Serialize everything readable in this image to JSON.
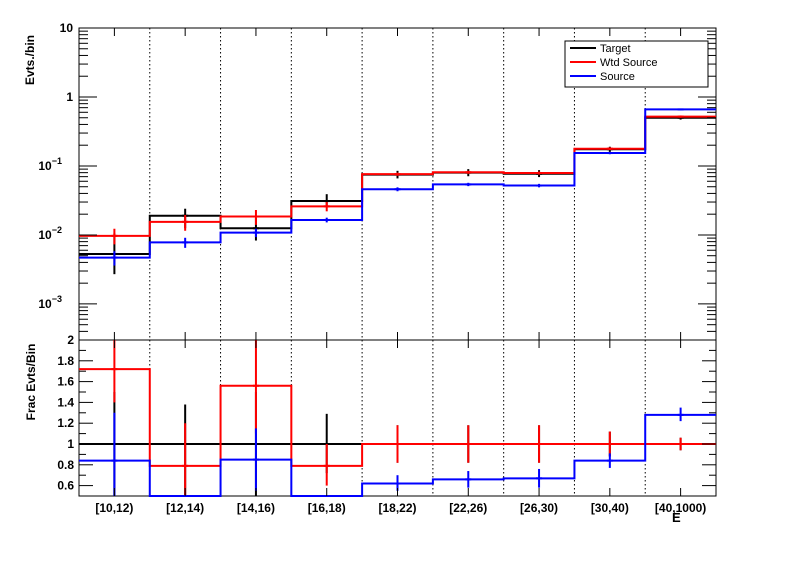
{
  "chart_data": [
    {
      "type": "line",
      "step": true,
      "title": "",
      "ylabel": "Evts./bin",
      "xlabel": "",
      "yscale": "log",
      "ylim": [
        0.0003,
        10
      ],
      "y_ticks": [
        {
          "label": "10",
          "value": 10,
          "exp": ""
        },
        {
          "label": "1",
          "value": 1,
          "exp": ""
        },
        {
          "label": "10",
          "value": 0.1,
          "exp": "−1"
        },
        {
          "label": "10",
          "value": 0.01,
          "exp": "−2"
        },
        {
          "label": "10",
          "value": 0.001,
          "exp": "−3"
        }
      ],
      "categories": [
        "[10,12)",
        "[12,14)",
        "[14,16)",
        "[16,18)",
        "[18,22)",
        "[22,26)",
        "[26,30)",
        "[30,40)",
        "[40,1000)"
      ],
      "legend": {
        "position": "top-right"
      },
      "grid": {
        "x": "dotted",
        "y": false
      },
      "series": [
        {
          "name": "Target",
          "color": "#000000",
          "values": [
            0.0053,
            0.019,
            0.0125,
            0.031,
            0.075,
            0.08,
            0.077,
            0.175,
            0.5
          ],
          "errors_low": [
            0.0027,
            0.0125,
            0.0083,
            0.025,
            0.066,
            0.071,
            0.069,
            0.16,
            0.47
          ],
          "errors_high": [
            0.0105,
            0.024,
            0.0175,
            0.039,
            0.085,
            0.09,
            0.087,
            0.19,
            0.53
          ]
        },
        {
          "name": "Wtd Source",
          "color": "#ff0000",
          "values": [
            0.0097,
            0.0155,
            0.0185,
            0.026,
            0.076,
            0.081,
            0.079,
            0.178,
            0.52
          ],
          "errors_low": [
            0.0073,
            0.0115,
            0.014,
            0.022,
            0.072,
            0.077,
            0.075,
            0.17,
            0.5
          ],
          "errors_high": [
            0.0123,
            0.0195,
            0.023,
            0.03,
            0.08,
            0.085,
            0.083,
            0.186,
            0.54
          ]
        },
        {
          "name": "Source",
          "color": "#0000ff",
          "values": [
            0.0047,
            0.0078,
            0.0108,
            0.0165,
            0.046,
            0.054,
            0.052,
            0.154,
            0.66
          ],
          "errors_low": [
            0.0036,
            0.0065,
            0.0093,
            0.0152,
            0.043,
            0.051,
            0.049,
            0.148,
            0.64
          ],
          "errors_high": [
            0.0058,
            0.0091,
            0.0123,
            0.0178,
            0.049,
            0.057,
            0.055,
            0.16,
            0.68
          ]
        }
      ]
    },
    {
      "type": "line",
      "step": true,
      "title": "",
      "ylabel": "Frac Evts/Bin",
      "xlabel": "E",
      "yscale": "linear",
      "ylim": [
        0.5,
        2.0
      ],
      "y_ticks": [
        "0.6",
        "0.8",
        "1",
        "1.2",
        "1.4",
        "1.6",
        "1.8",
        "2"
      ],
      "categories": [
        "[10,12)",
        "[12,14)",
        "[14,16)",
        "[16,18)",
        "[18,22)",
        "[22,26)",
        "[26,30)",
        "[30,40)",
        "[40,1000)"
      ],
      "grid": {
        "x": "dotted",
        "y": false
      },
      "series": [
        {
          "name": "Target",
          "color": "#000000",
          "values": [
            1,
            1,
            1,
            1,
            1,
            1,
            1,
            1,
            1
          ],
          "errors_low": [
            0.5,
            0.5,
            0.5,
            0.72,
            0.82,
            0.82,
            0.82,
            0.88,
            0.94
          ],
          "errors_high": [
            1.5,
            1.38,
            1.5,
            1.29,
            1.18,
            1.18,
            1.18,
            1.12,
            1.06
          ]
        },
        {
          "name": "Wtd Source",
          "color": "#ff0000",
          "values": [
            1.72,
            0.79,
            1.56,
            0.79,
            1.0,
            1.0,
            1.0,
            1.0,
            1.0
          ],
          "errors_low": [
            1.4,
            0.5,
            1.1,
            0.6,
            0.82,
            0.82,
            0.82,
            0.88,
            0.94
          ],
          "errors_high": [
            2.0,
            1.2,
            2.0,
            1.0,
            1.18,
            1.18,
            1.18,
            1.12,
            1.06
          ]
        },
        {
          "name": "Source",
          "color": "#0000ff",
          "values": [
            0.84,
            0.5,
            0.85,
            0.5,
            0.62,
            0.66,
            0.67,
            0.84,
            1.28
          ],
          "errors_low": [
            0.5,
            0.5,
            0.55,
            0.5,
            0.55,
            0.58,
            0.58,
            0.77,
            1.22
          ],
          "errors_high": [
            1.3,
            0.5,
            1.15,
            0.5,
            0.7,
            0.74,
            0.76,
            0.91,
            1.35
          ]
        }
      ]
    }
  ]
}
